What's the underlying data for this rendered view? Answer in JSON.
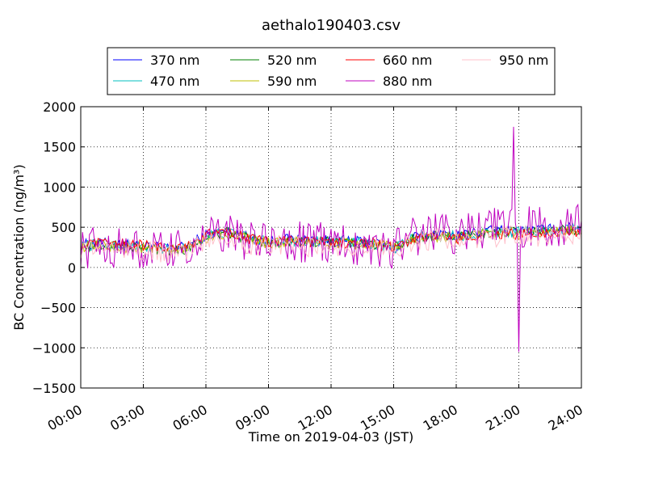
{
  "chart_data": {
    "type": "line",
    "title": "aethalo190403.csv",
    "xlabel": "Time on 2019-04-03 (JST)",
    "ylabel": "BC Concentration (ng/m³)",
    "xlim": [
      "00:00",
      "24:00"
    ],
    "ylim": [
      -1500,
      2000
    ],
    "x_ticks": [
      "00:00",
      "03:00",
      "06:00",
      "09:00",
      "12:00",
      "15:00",
      "18:00",
      "21:00",
      "24:00"
    ],
    "y_ticks": [
      -1500,
      -1000,
      -500,
      0,
      500,
      1000,
      1500,
      2000
    ],
    "grid": true,
    "legend_placement": "top-center",
    "x": [
      "00:00",
      "01:00",
      "02:00",
      "03:00",
      "04:00",
      "05:00",
      "06:00",
      "07:00",
      "08:00",
      "09:00",
      "10:00",
      "11:00",
      "12:00",
      "13:00",
      "14:00",
      "15:00",
      "16:00",
      "17:00",
      "18:00",
      "19:00",
      "20:00",
      "21:00",
      "22:00",
      "23:00",
      "24:00"
    ],
    "series": [
      {
        "name": "370 nm",
        "color": "#0000ff",
        "values": [
          280,
          300,
          290,
          260,
          240,
          250,
          400,
          450,
          380,
          330,
          350,
          340,
          330,
          320,
          310,
          220,
          380,
          420,
          400,
          440,
          460,
          450,
          470,
          480,
          500
        ]
      },
      {
        "name": "470 nm",
        "color": "#00bfbf",
        "values": [
          270,
          290,
          280,
          250,
          230,
          240,
          390,
          440,
          370,
          320,
          340,
          330,
          320,
          310,
          300,
          230,
          370,
          410,
          390,
          430,
          450,
          440,
          460,
          470,
          490
        ]
      },
      {
        "name": "520 nm",
        "color": "#008000",
        "values": [
          260,
          280,
          270,
          240,
          220,
          230,
          380,
          430,
          360,
          310,
          330,
          320,
          310,
          300,
          290,
          240,
          360,
          400,
          380,
          420,
          440,
          430,
          450,
          460,
          480
        ]
      },
      {
        "name": "590 nm",
        "color": "#bfbf00",
        "values": [
          250,
          270,
          260,
          230,
          210,
          220,
          370,
          420,
          350,
          300,
          320,
          310,
          300,
          290,
          280,
          250,
          350,
          390,
          370,
          410,
          430,
          420,
          440,
          450,
          470
        ]
      },
      {
        "name": "660 nm",
        "color": "#ff0000",
        "values": [
          270,
          300,
          290,
          280,
          250,
          260,
          400,
          470,
          360,
          310,
          330,
          320,
          310,
          300,
          300,
          240,
          350,
          390,
          360,
          400,
          420,
          410,
          430,
          440,
          450
        ]
      },
      {
        "name": "880 nm",
        "color": "#bf00bf",
        "values": [
          240,
          260,
          250,
          200,
          190,
          210,
          380,
          420,
          330,
          300,
          320,
          310,
          300,
          290,
          280,
          230,
          400,
          450,
          420,
          480,
          500,
          480,
          520,
          520,
          540
        ]
      },
      {
        "name": "950 nm",
        "color": "#ffc0cb",
        "values": [
          230,
          250,
          240,
          190,
          180,
          200,
          360,
          400,
          280,
          260,
          280,
          270,
          260,
          250,
          240,
          220,
          330,
          360,
          330,
          370,
          390,
          380,
          400,
          410,
          430
        ]
      }
    ],
    "extremes_880nm": {
      "max": 1750,
      "max_time": "20:45",
      "min": -1050,
      "min_time": "21:00"
    }
  }
}
